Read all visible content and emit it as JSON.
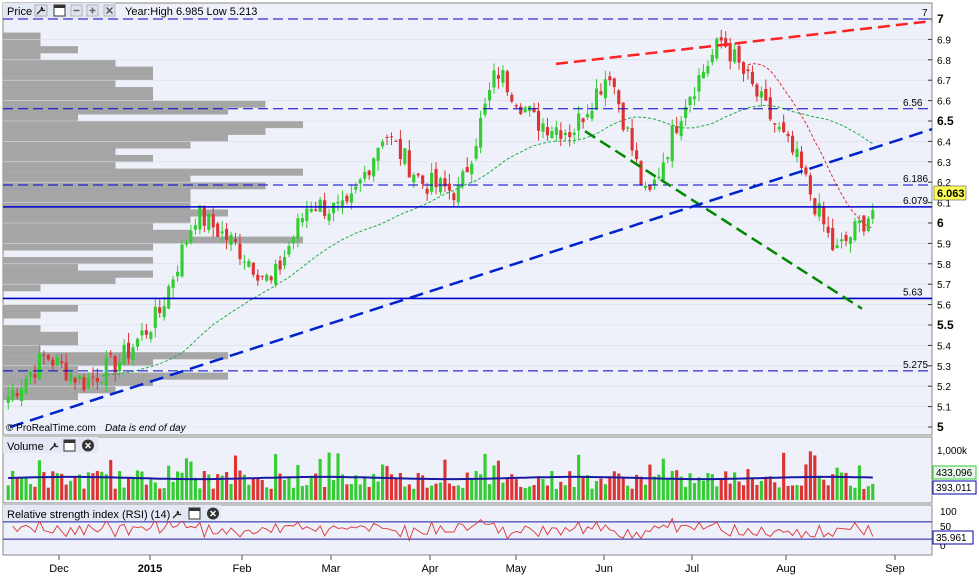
{
  "price_panel": {
    "title": "Price",
    "info": "Year:High 6.985 Low 5.213",
    "watermark": "© ProRealTime.com",
    "note": "Data is end of day",
    "y_ticks": [
      "7",
      "6.9",
      "6.8",
      "6.7",
      "6.6",
      "6.5",
      "6.4",
      "6.3",
      "6.2",
      "6.1",
      "6",
      "5.9",
      "5.8",
      "5.7",
      "5.6",
      "5.5",
      "5.4",
      "5.3",
      "5.2",
      "5.1",
      "5"
    ],
    "current_price": "6.063",
    "levels": [
      {
        "label": "7",
        "value": 7.0,
        "style": "dashed"
      },
      {
        "label": "6.56",
        "value": 6.56,
        "style": "dashed"
      },
      {
        "label": "6.186",
        "value": 6.186,
        "style": "dashed"
      },
      {
        "label": "6.079",
        "value": 6.079,
        "style": "solid"
      },
      {
        "label": "5.63",
        "value": 5.63,
        "style": "solid"
      },
      {
        "label": "5.275",
        "value": 5.275,
        "style": "dashed"
      }
    ]
  },
  "volume_panel": {
    "title": "Volume",
    "y_ticks": [
      "1,000k"
    ],
    "value_a": "433,096",
    "value_b": "393,011"
  },
  "rsi_panel": {
    "title": "Relative strength index (RSI) (14)",
    "y_ticks": [
      "100",
      "50",
      "0"
    ],
    "value": "35.961"
  },
  "x_axis": {
    "labels": [
      "Dec",
      "2015",
      "Feb",
      "Mar",
      "Apr",
      "May",
      "Jun",
      "Jul",
      "Aug",
      "Sep"
    ]
  },
  "colors": {
    "up": "#33cc33",
    "down": "#dd3333",
    "level_line": "#0000cc",
    "red_trend": "#ff2222",
    "green_trend": "#008800",
    "blue_trend": "#0022cc",
    "profile": "#999999"
  },
  "chart_data": {
    "type": "candlestick",
    "ylim": [
      5.0,
      7.0
    ],
    "title": "",
    "x_labels": [
      "Dec",
      "2015",
      "Feb",
      "Mar",
      "Apr",
      "May",
      "Jun",
      "Jul",
      "Aug",
      "Sep"
    ],
    "close_series_sampled": [
      {
        "x": "Nov",
        "y": 5.15
      },
      {
        "x": "Dec",
        "y": 5.35
      },
      {
        "x": "mid-Dec",
        "y": 5.22
      },
      {
        "x": "2015",
        "y": 5.33
      },
      {
        "x": "mid-Jan",
        "y": 5.55
      },
      {
        "x": "late-Jan",
        "y": 6.05
      },
      {
        "x": "Feb",
        "y": 5.9
      },
      {
        "x": "mid-Feb",
        "y": 5.7
      },
      {
        "x": "Mar",
        "y": 6.1
      },
      {
        "x": "mid-Mar",
        "y": 6.05
      },
      {
        "x": "Apr",
        "y": 6.45
      },
      {
        "x": "mid-Apr",
        "y": 6.2
      },
      {
        "x": "May",
        "y": 6.15
      },
      {
        "x": "mid-May",
        "y": 6.75
      },
      {
        "x": "Jun",
        "y": 6.5
      },
      {
        "x": "mid-Jun",
        "y": 6.45
      },
      {
        "x": "late-Jun",
        "y": 6.75
      },
      {
        "x": "Jul",
        "y": 6.1
      },
      {
        "x": "mid-Jul",
        "y": 6.6
      },
      {
        "x": "late-Jul",
        "y": 6.9
      },
      {
        "x": "Aug",
        "y": 6.6
      },
      {
        "x": "mid-Aug",
        "y": 6.3
      },
      {
        "x": "late-Aug",
        "y": 5.85
      },
      {
        "x": "last",
        "y": 6.063
      }
    ],
    "series": [
      {
        "name": "Volume",
        "current": "433,096"
      },
      {
        "name": "RSI (14)",
        "current": "35.961"
      }
    ]
  }
}
